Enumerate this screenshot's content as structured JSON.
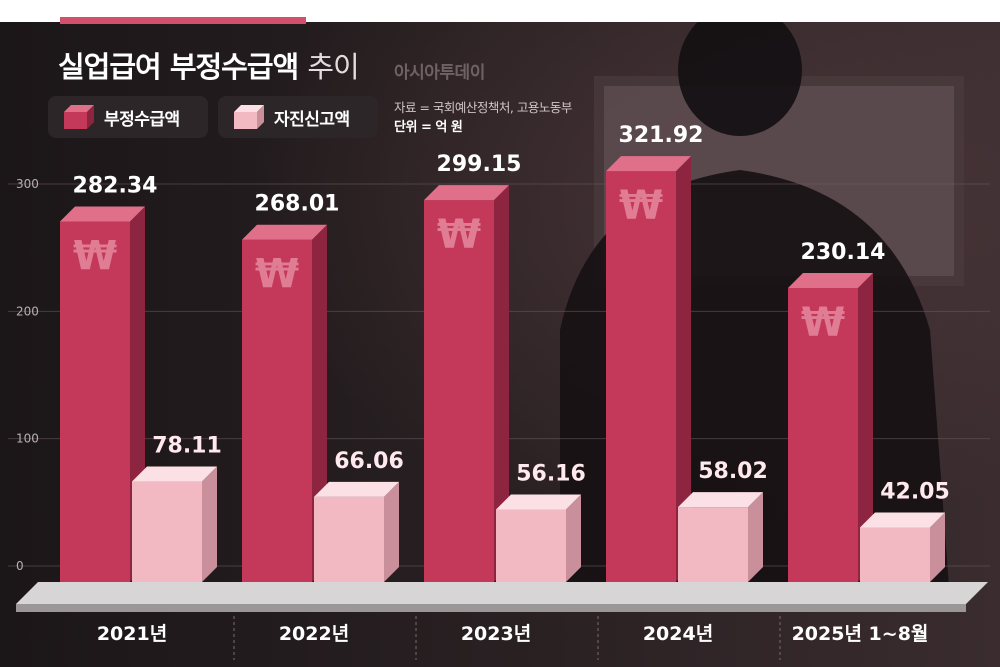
{
  "title": "실업급여 부정수급액",
  "title_suffix": "추이",
  "brand": "아시아투데이",
  "source": "자료 = 국회예산정책처, 고용노동부",
  "unit": "단위 = 억 원",
  "colors": {
    "series1": "#c4385a",
    "series2": "#f2b9c3",
    "background": "#1f1a1c"
  },
  "chart_data": {
    "type": "bar",
    "title": "실업급여 부정수급액 추이",
    "categories": [
      "2021년",
      "2022년",
      "2023년",
      "2024년",
      "2025년 1~8월"
    ],
    "series": [
      {
        "name": "부정수급액",
        "values": [
          282.34,
          268.01,
          299.15,
          321.92,
          230.14
        ],
        "labels": [
          "282.34",
          "268.01",
          "299.15",
          "321.92",
          "230.14"
        ]
      },
      {
        "name": "자진신고액",
        "values": [
          78.11,
          66.06,
          56.16,
          58.02,
          42.05
        ],
        "labels": [
          "78.11",
          "66.06",
          "56.16",
          "58.02",
          "42.05"
        ]
      }
    ],
    "yticks": [
      "0",
      "100",
      "200",
      "300"
    ],
    "ylim": [
      0,
      300
    ],
    "legend": "top-left",
    "bar_symbol": "₩",
    "unit": "억 원"
  }
}
